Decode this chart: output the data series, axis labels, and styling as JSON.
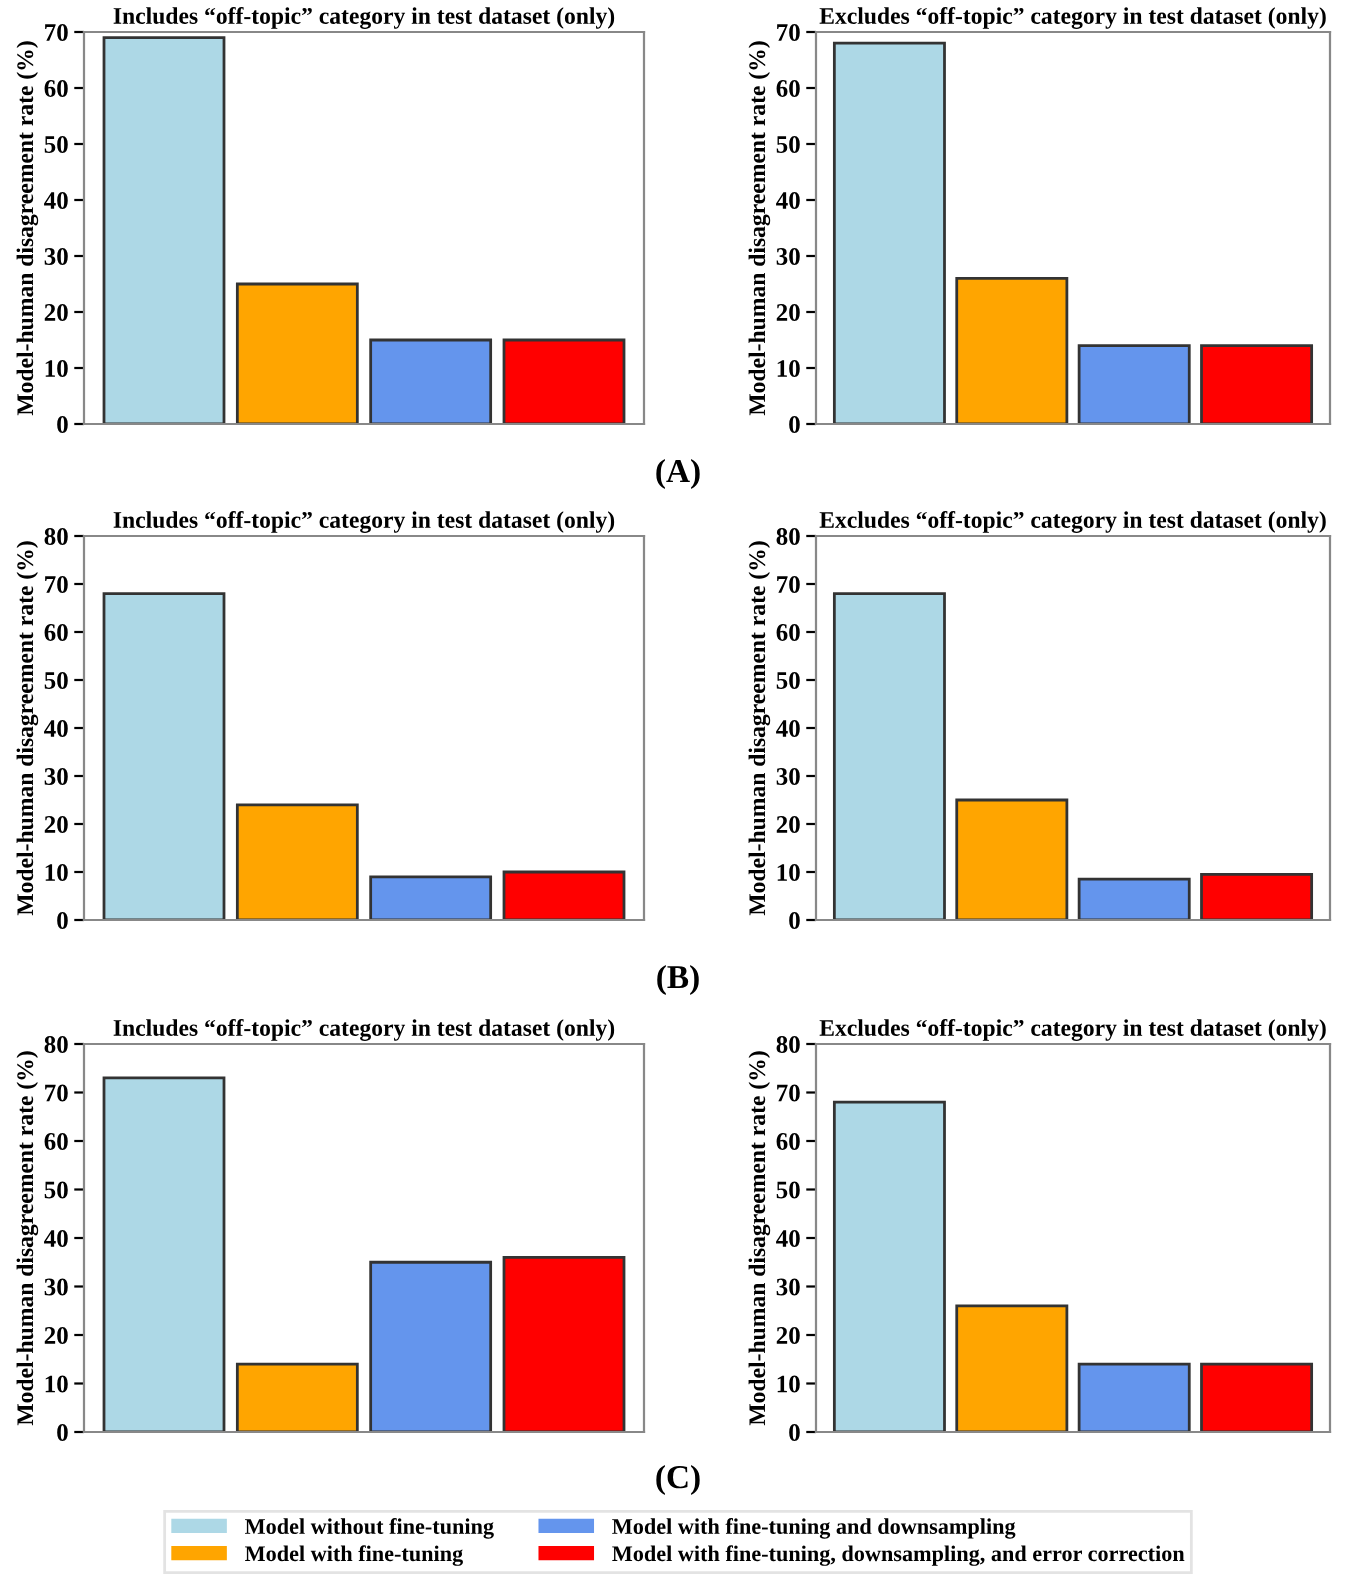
{
  "chart_data": [
    {
      "type": "bar",
      "title": "Includes “off-topic” category in test dataset (only)",
      "ylabel": "Model-human disagreement rate (%)",
      "categories": [
        null,
        null,
        null,
        null
      ],
      "values": [
        69,
        25,
        15,
        15
      ],
      "colors": [
        "#add8e6",
        "#ffa500",
        "#6495ed",
        "#ff0000"
      ],
      "ylim": [
        0,
        70
      ],
      "yticks": [
        0,
        10,
        20,
        30,
        40,
        50,
        60,
        70
      ],
      "annotations": [
        "(A)"
      ]
    },
    {
      "type": "bar",
      "title": "Excludes “off-topic” category in test dataset (only)",
      "ylabel": "Model-human disagreement rate (%)",
      "categories": [
        null,
        null,
        null,
        null
      ],
      "values": [
        68,
        26,
        14,
        14
      ],
      "colors": [
        "#add8e6",
        "#ffa500",
        "#6495ed",
        "#ff0000"
      ],
      "ylim": [
        0,
        70
      ],
      "yticks": [
        0,
        10,
        20,
        30,
        40,
        50,
        60,
        70
      ]
    },
    {
      "type": "bar",
      "title": "Includes “off-topic” category in test dataset (only)",
      "ylabel": "Model-human disagreement rate (%)",
      "categories": [
        null,
        null,
        null,
        null
      ],
      "values": [
        68,
        24,
        9,
        10
      ],
      "colors": [
        "#add8e6",
        "#ffa500",
        "#6495ed",
        "#ff0000"
      ],
      "ylim": [
        0,
        80
      ],
      "yticks": [
        0,
        10,
        20,
        30,
        40,
        50,
        60,
        70,
        80
      ],
      "annotations": [
        "(B)"
      ]
    },
    {
      "type": "bar",
      "title": "Excludes “off-topic” category in test dataset (only)",
      "ylabel": "Model-human disagreement rate (%)",
      "categories": [
        null,
        null,
        null,
        null
      ],
      "values": [
        68,
        25,
        8.5,
        9.5
      ],
      "colors": [
        "#add8e6",
        "#ffa500",
        "#6495ed",
        "#ff0000"
      ],
      "ylim": [
        0,
        80
      ],
      "yticks": [
        0,
        10,
        20,
        30,
        40,
        50,
        60,
        70,
        80
      ]
    },
    {
      "type": "bar",
      "title": "Includes “off-topic” category in test dataset (only)",
      "ylabel": "Model-human disagreement rate (%)",
      "categories": [
        null,
        null,
        null,
        null
      ],
      "values": [
        73,
        14,
        35,
        36
      ],
      "colors": [
        "#add8e6",
        "#ffa500",
        "#6495ed",
        "#ff0000"
      ],
      "ylim": [
        0,
        80
      ],
      "yticks": [
        0,
        10,
        20,
        30,
        40,
        50,
        60,
        70,
        80
      ],
      "annotations": [
        "(C)"
      ]
    },
    {
      "type": "bar",
      "title": "Excludes “off-topic” category in test dataset (only)",
      "ylabel": "Model-human disagreement rate (%)",
      "categories": [
        null,
        null,
        null,
        null
      ],
      "ylim": [
        0,
        80
      ],
      "yticks": [
        0,
        10,
        20,
        30,
        40,
        50,
        60,
        70,
        80
      ],
      "legend": "bottom",
      "series": [
        {
          "name": "Model without fine-tuning",
          "color": "#add8e6",
          "values": [
            68,
            null,
            null,
            null
          ]
        },
        {
          "name": "Model with fine-tuning",
          "color": "#ffa500",
          "values": [
            null,
            26,
            null,
            null
          ]
        },
        {
          "name": "Model with fine-tuning and downsampling",
          "color": "#6495ed",
          "values": [
            null,
            null,
            14,
            null
          ]
        },
        {
          "name": "Model with fine-tuning, downsampling, and error correction",
          "color": "#ff0000",
          "values": [
            null,
            null,
            null,
            14
          ]
        }
      ]
    }
  ]
}
